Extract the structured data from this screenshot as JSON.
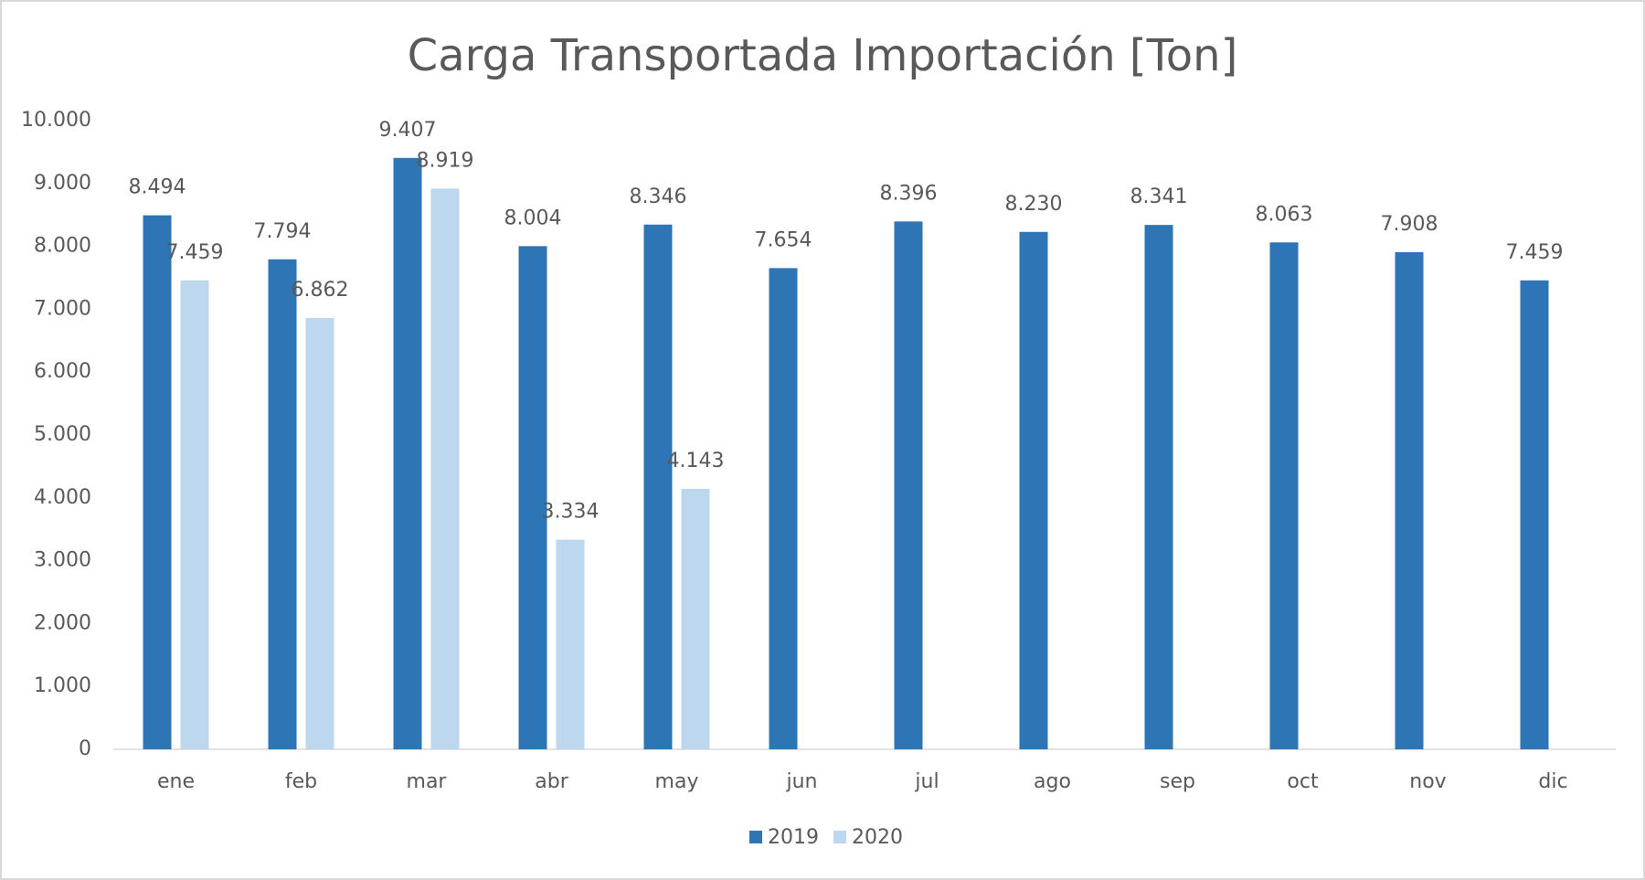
{
  "chart_data": {
    "type": "bar",
    "title": "Carga Transportada Importación [Ton]",
    "categories": [
      "ene",
      "feb",
      "mar",
      "abr",
      "may",
      "jun",
      "jul",
      "ago",
      "sep",
      "oct",
      "nov",
      "dic"
    ],
    "series": [
      {
        "name": "2019",
        "color": "#2e75b6",
        "values": [
          8494,
          7794,
          9407,
          8004,
          8346,
          7654,
          8396,
          8230,
          8341,
          8063,
          7908,
          7459
        ],
        "value_labels": [
          "8.494",
          "7.794",
          "9.407",
          "8.004",
          "8.346",
          "7.654",
          "8.396",
          "8.230",
          "8.341",
          "8.063",
          "7.908",
          "7.459"
        ]
      },
      {
        "name": "2020",
        "color": "#bdd7ee",
        "values": [
          7459,
          6862,
          8919,
          3334,
          4143,
          null,
          null,
          null,
          null,
          null,
          null,
          null
        ],
        "value_labels": [
          "7.459",
          "6.862",
          "8.919",
          "3.334",
          "4.143",
          null,
          null,
          null,
          null,
          null,
          null,
          null
        ]
      }
    ],
    "ylim": [
      0,
      10000
    ],
    "yticks": [
      0,
      {
        "value": 1000,
        "label": "1.000"
      },
      {
        "value": 2000,
        "label": "2.000"
      },
      {
        "value": 3000,
        "label": "3.000"
      },
      {
        "value": 4000,
        "label": "4.000"
      },
      {
        "value": 5000,
        "label": "5.000"
      },
      {
        "value": 6000,
        "label": "6.000"
      },
      {
        "value": 7000,
        "label": "7.000"
      },
      {
        "value": 8000,
        "label": "8.000"
      },
      {
        "value": 9000,
        "label": "9.000"
      },
      {
        "value": 10000,
        "label": "10.000"
      }
    ],
    "grid": false,
    "legend": "bottom"
  }
}
